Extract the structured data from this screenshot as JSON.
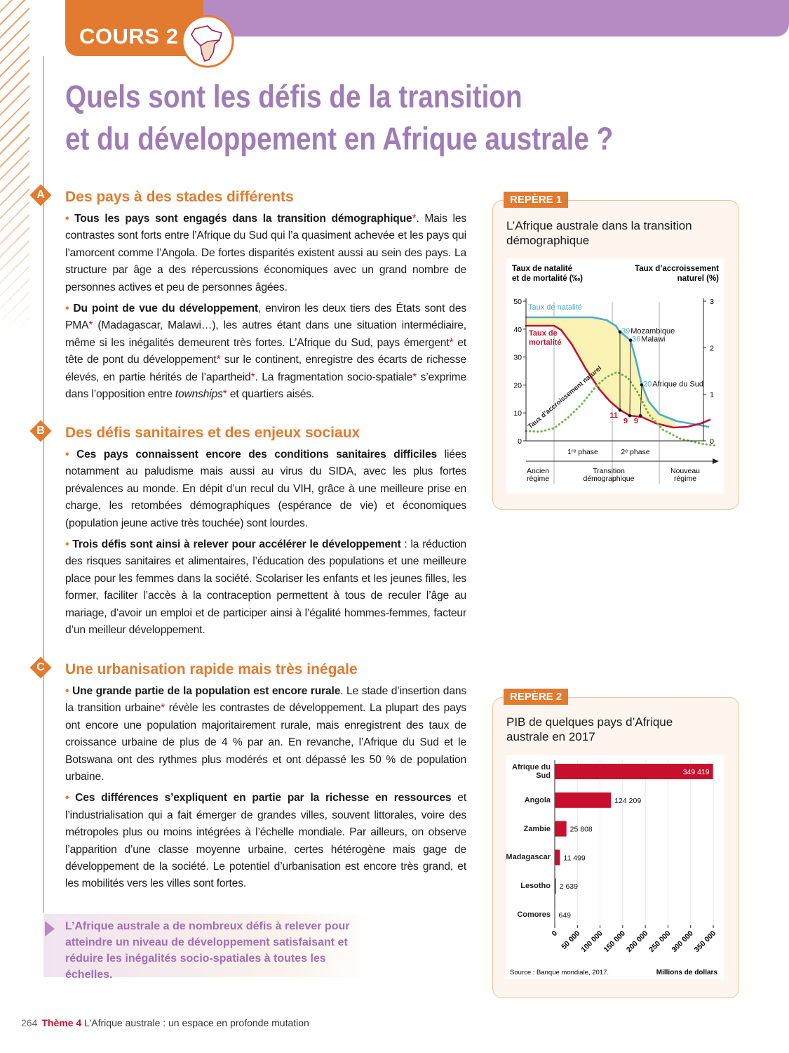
{
  "header": {
    "label": "COURS 2",
    "title": [
      "Quels sont les défis de la transition",
      "et du développement en Afrique australe ?"
    ]
  },
  "sections": [
    {
      "letter": "A",
      "heading": "Des pays à des stades différents",
      "paragraphs": [
        [
          {
            "text": "•",
            "style": "bullet"
          },
          {
            "text": " "
          },
          {
            "text": "Tous les pays sont engagés dans la transition démographique",
            "style": "bold"
          },
          {
            "text": "*. Mais les contrastes sont forts entre l’Afrique du Sud qui l’a quasiment achevée et les pays qui l’amorcent comme l’Angola. De fortes disparités existent aussi au sein des pays. La structure par âge a des répercussions économiques avec un grand nombre de personnes actives et peu de personnes âgées."
          }
        ],
        [
          {
            "text": "•",
            "style": "bullet"
          },
          {
            "text": " "
          },
          {
            "text": "Du point de vue du développement",
            "style": "bold"
          },
          {
            "text": ", environ les deux tiers des États sont des PMA* (Madagascar, Malawi…), les autres étant dans une situation intermédiaire, même si les inégalités demeurent très fortes. L’Afrique du Sud, pays émergent* et tête de pont du développement* sur le continent, enregistre des écarts de richesse élevés, en partie hérités de l’apartheid*. La fragmentation socio-spatiale* s’exprime dans l’opposition entre "
          },
          {
            "text": "townships",
            "style": "italic"
          },
          {
            "text": "* et quartiers aisés."
          }
        ]
      ]
    },
    {
      "letter": "B",
      "heading": "Des défis sanitaires et des enjeux sociaux",
      "paragraphs": [
        [
          {
            "text": "•",
            "style": "bullet"
          },
          {
            "text": " "
          },
          {
            "text": "Ces pays connaissent encore des conditions sanitaires difficiles",
            "style": "bold"
          },
          {
            "text": " liées notamment au paludisme mais aussi au virus du SIDA, avec les plus fortes prévalences au monde. En dépit d’un recul du VIH, grâce à une meilleure prise en charge, les retombées démographiques (espérance de vie) et économiques (population jeune active très touchée) sont lourdes."
          }
        ],
        [
          {
            "text": "•",
            "style": "bullet"
          },
          {
            "text": " "
          },
          {
            "text": "Trois défis sont ainsi à relever pour accélérer le développement",
            "style": "bold"
          },
          {
            "text": " : la réduction des risques sanitaires et alimentaires, l’éducation des populations et une meilleure place pour les femmes dans la société. Scolariser les enfants et les jeunes filles, les former, faciliter l’accès à la contraception permettent à tous de reculer l’âge au mariage, d’avoir un emploi et de participer ainsi à l’égalité hommes-femmes, facteur d’un meilleur développement."
          }
        ]
      ]
    },
    {
      "letter": "C",
      "heading": "Une urbanisation rapide mais très inégale",
      "paragraphs": [
        [
          {
            "text": "•",
            "style": "bullet"
          },
          {
            "text": " "
          },
          {
            "text": "Une grande partie de la population est encore rurale",
            "style": "bold"
          },
          {
            "text": ". Le stade d’insertion dans la transition urbaine* révèle les contrastes de développement. La plupart des pays ont encore une population majoritairement rurale, mais enregistrent des taux de croissance urbaine de plus de 4 % par an. En revanche, l’Afrique du Sud et le Botswana ont des rythmes plus modérés et ont dépassé les 50 % de population urbaine."
          }
        ],
        [
          {
            "text": "•",
            "style": "bullet"
          },
          {
            "text": " "
          },
          {
            "text": "Ces différences s’expliquent en partie par la richesse en ressources",
            "style": "bold"
          },
          {
            "text": " et l’industrialisation qui a fait émerger de grandes villes, souvent littorales, voire des métropoles plus ou moins intégrées à l’échelle mondiale. Par ailleurs, on observe l’apparition d’une classe moyenne urbaine, certes hétérogène mais gage de développement de la société. Le potentiel d’urbanisation est encore très grand, et les mobilités vers les villes sont fortes."
          }
        ]
      ]
    }
  ],
  "summary": "L’Afrique australe a de nombreux défis à relever pour atteindre un niveau de développement satisfaisant et réduire les inégalités socio-spatiales à toutes les échelles.",
  "footer": {
    "page": "264",
    "theme": "Thème 4",
    "title": "L’Afrique australe : un espace en profonde mutation"
  },
  "chart_data": [
    {
      "type": "line",
      "tag": "REPÈRE 1",
      "title": "L’Afrique australe dans la transition démographique",
      "ylabel": [
        "Taux de natalité",
        "et de mortalité (‰)"
      ],
      "y2label": [
        "Taux d’accroissement",
        "naturel (%)"
      ],
      "ylim": [
        0,
        50
      ],
      "yticks": [
        0,
        10,
        20,
        30,
        40,
        50
      ],
      "y2lim": [
        0,
        3
      ],
      "y2ticks": [
        0,
        1,
        2,
        3
      ],
      "curves": [
        {
          "name": [
            "Taux de natalité"
          ],
          "color": "#4aaad9",
          "style": "solid"
        },
        {
          "name": [
            "Taux de",
            "mortalité"
          ],
          "color": "#c8102e",
          "style": "solid"
        },
        {
          "name": [
            "Taux d’accroissement naturel"
          ],
          "color": "#6fb24b",
          "style": "dotted"
        }
      ],
      "fill_color": "#fbf3b4",
      "points": [
        {
          "curve": 0,
          "value": 39,
          "label": "Mozambique"
        },
        {
          "curve": 0,
          "value": 36,
          "label": "Malawi"
        },
        {
          "curve": 0,
          "value": 20,
          "label": "Afrique du Sud"
        },
        {
          "curve": 1,
          "value": 11
        },
        {
          "curve": 1,
          "value": 9
        },
        {
          "curve": 1,
          "value": 9
        }
      ],
      "phases": [
        "1ʳᵉ phase",
        "2ᵉ phase"
      ],
      "regimes": [
        [
          "Ancien",
          "régime"
        ],
        [
          "Transition",
          "démographique"
        ],
        [
          "Nouveau",
          "régime"
        ]
      ]
    },
    {
      "type": "bar",
      "tag": "REPÈRE 2",
      "title": "PIB de quelques pays d’Afrique australe en 2017",
      "categories": [
        "Afrique du Sud",
        "Angola",
        "Zambie",
        "Madagascar",
        "Lesotho",
        "Comores"
      ],
      "values": [
        349419,
        124209,
        25808,
        11499,
        2639,
        649
      ],
      "value_labels": [
        "349 419",
        "124 209",
        "25 808",
        "11 499",
        "2 639",
        "649"
      ],
      "color": "#c8102e",
      "xlim": [
        0,
        350000
      ],
      "xticks": [
        0,
        {
          "value": 50000,
          "label": "50 000"
        },
        {
          "value": 100000,
          "label": "100 000"
        },
        {
          "value": 150000,
          "label": "150 000"
        },
        {
          "value": 200000,
          "label": "200 000"
        },
        {
          "value": 250000,
          "label": "250 000"
        },
        {
          "value": 300000,
          "label": "300 000"
        },
        {
          "value": 350000,
          "label": "350 000"
        }
      ],
      "grid": true,
      "source": "Source : Banque mondiale, 2017.",
      "xlabel": "Millions de dollars"
    }
  ]
}
